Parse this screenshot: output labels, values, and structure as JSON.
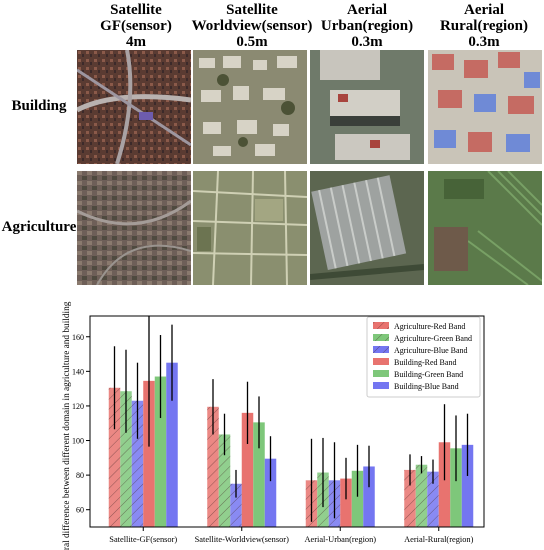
{
  "figure": {
    "columns": [
      {
        "line1": "Satellite",
        "line2": "GF(sensor)",
        "line3": "4m"
      },
      {
        "line1": "Satellite",
        "line2": "Worldview(sensor)",
        "line3": "0.5m"
      },
      {
        "line1": "Aerial",
        "line2": "Urban(region)",
        "line3": "0.3m"
      },
      {
        "line1": "Aerial",
        "line2": "Rural(region)",
        "line3": "0.3m"
      }
    ],
    "rows": [
      {
        "label": "Building"
      },
      {
        "label": "Agriculture"
      }
    ]
  },
  "chart_data": {
    "type": "bar",
    "title": "",
    "xlabel": "",
    "ylabel": "Spectral difference between different domain in agriculture and building class",
    "ylim": [
      50,
      172
    ],
    "yticks": [
      60,
      80,
      100,
      120,
      140,
      160
    ],
    "categories": [
      "Satellite-GF(sensor)",
      "Satellite-Worldview(sensor)",
      "Aerial-Urban(region)",
      "Aerial-Rural(region)"
    ],
    "legend_position": "top-right",
    "grid": false,
    "series": [
      {
        "name": "Agriculture-Red Band",
        "color": "#e8736f",
        "hatch": true,
        "values": [
          130.5,
          119.5,
          77,
          83
        ],
        "errors": [
          24,
          16,
          24,
          9
        ]
      },
      {
        "name": "Agriculture-Green Band",
        "color": "#7ec77a",
        "hatch": true,
        "values": [
          128.5,
          103.5,
          81.5,
          86
        ],
        "errors": [
          24,
          12,
          20,
          5
        ]
      },
      {
        "name": "Agriculture-Blue Band",
        "color": "#7476f1",
        "hatch": true,
        "values": [
          123,
          75,
          77,
          82
        ],
        "errors": [
          22,
          8,
          22,
          7
        ]
      },
      {
        "name": "Building-Red Band",
        "color": "#e8736f",
        "hatch": false,
        "values": [
          134.5,
          116,
          78,
          99
        ],
        "errors": [
          38,
          18,
          12,
          22
        ]
      },
      {
        "name": "Building-Green Band",
        "color": "#7ec77a",
        "hatch": false,
        "values": [
          137,
          110.5,
          82.5,
          95.5
        ],
        "errors": [
          24,
          15,
          15,
          19
        ]
      },
      {
        "name": "Building-Blue Band",
        "color": "#7476f1",
        "hatch": false,
        "values": [
          145,
          89.5,
          85,
          97.5
        ],
        "errors": [
          22,
          13,
          12,
          18
        ]
      }
    ]
  }
}
